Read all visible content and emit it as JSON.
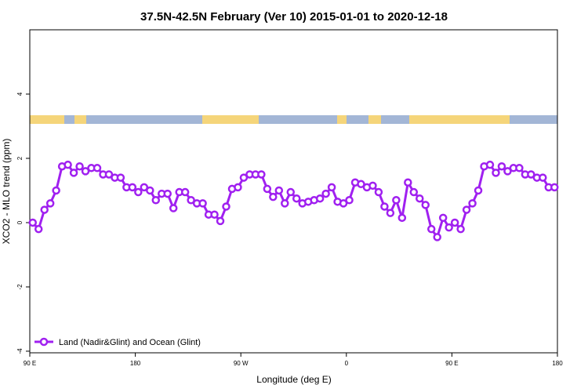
{
  "chart_data": {
    "type": "line",
    "title": "37.5N-42.5N February (Ver 10)   2015-01-01 to 2020-12-18",
    "x_label": "Longitude (deg E)",
    "y_label": "XCO2 - MLO trend (ppm)",
    "xlim": [
      90,
      540
    ],
    "ylim": [
      -4.05,
      6
    ],
    "xticks": [
      {
        "value": 90,
        "label": "90 E"
      },
      180,
      {
        "value": 270,
        "label": "90 W"
      },
      {
        "value": 360,
        "label": "0"
      },
      {
        "value": 450,
        "label": "90 E"
      },
      {
        "value": 540,
        "label": "180"
      }
    ],
    "yticks": [
      -4,
      -2,
      0,
      2,
      4
    ],
    "legend": "bottom-left",
    "x": [
      92.5,
      97.5,
      102.5,
      107.5,
      112.5,
      117.5,
      122.5,
      127.5,
      132.5,
      137.5,
      142.5,
      147.5,
      152.5,
      157.5,
      162.5,
      167.5,
      172.5,
      177.5,
      182.5,
      187.5,
      192.5,
      197.5,
      202.5,
      207.5,
      212.5,
      217.5,
      222.5,
      227.5,
      232.5,
      237.5,
      242.5,
      247.5,
      252.5,
      257.5,
      262.5,
      267.5,
      272.5,
      277.5,
      282.5,
      287.5,
      292.5,
      297.5,
      302.5,
      307.5,
      312.5,
      317.5,
      322.5,
      327.5,
      332.5,
      337.5,
      342.5,
      347.5,
      352.5,
      357.5,
      362.5,
      367.5,
      372.5,
      377.5,
      382.5,
      387.5,
      392.5,
      397.5,
      402.5,
      407.5,
      412.5,
      417.5,
      422.5,
      427.5,
      432.5,
      437.5,
      442.5,
      447.5,
      452.5,
      457.5,
      462.5,
      467.5,
      472.5,
      477.5,
      482.5,
      487.5,
      492.5,
      497.5,
      502.5,
      507.5,
      512.5,
      517.5,
      522.5,
      527.5,
      532.5,
      537.5
    ],
    "series": [
      {
        "name": "Land (Nadir&Glint) and Ocean (Glint)",
        "color": "#a020f0",
        "values": [
          0.0,
          -0.2,
          0.4,
          0.6,
          1.0,
          1.75,
          1.8,
          1.55,
          1.75,
          1.6,
          1.7,
          1.7,
          1.5,
          1.5,
          1.4,
          1.4,
          1.1,
          1.1,
          0.95,
          1.1,
          1.0,
          0.7,
          0.9,
          0.9,
          0.45,
          0.95,
          0.95,
          0.7,
          0.6,
          0.6,
          0.25,
          0.25,
          0.05,
          0.5,
          1.05,
          1.1,
          1.4,
          1.5,
          1.5,
          1.5,
          1.05,
          0.8,
          1.0,
          0.6,
          0.95,
          0.75,
          0.6,
          0.65,
          0.7,
          0.75,
          0.9,
          1.1,
          0.65,
          0.6,
          0.7,
          1.25,
          1.2,
          1.1,
          1.15,
          0.95,
          0.5,
          0.3,
          0.7,
          0.15,
          1.25,
          0.95,
          0.75,
          0.55,
          -0.2,
          -0.45,
          0.15,
          -0.15,
          0.0,
          -0.2,
          0.4,
          0.6,
          1.0,
          1.75,
          1.8,
          1.55,
          1.75,
          1.6,
          1.7,
          1.7,
          1.5,
          1.5,
          1.4,
          1.4,
          1.1,
          1.1
        ]
      }
    ]
  }
}
